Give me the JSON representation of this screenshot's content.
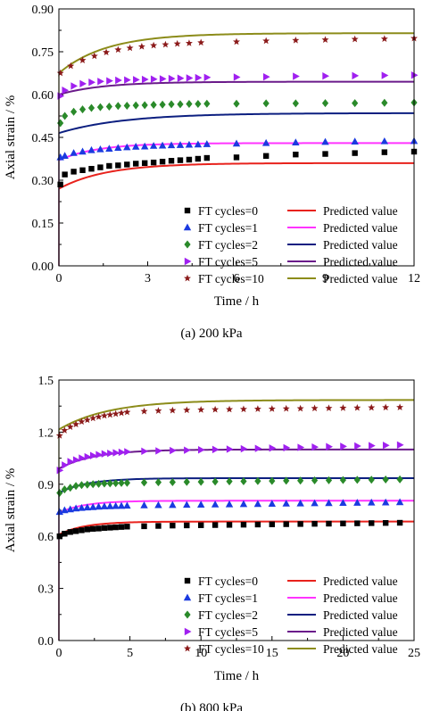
{
  "chart_data": [
    {
      "type": "scatter",
      "caption": "(a) 200 kPa",
      "xlabel": "Time / h",
      "ylabel": "Axial strain / %",
      "xlim": [
        0,
        12
      ],
      "ylim": [
        0,
        0.9
      ],
      "xticks": [
        "0",
        "3",
        "6",
        "9",
        "12"
      ],
      "yticks": [
        "0.00",
        "0.15",
        "0.30",
        "0.45",
        "0.60",
        "0.75",
        "0.90"
      ],
      "legend_position": "bottom-right",
      "predicted_label": "Predicted value",
      "series": [
        {
          "name": "FT cycles=0",
          "marker": "square",
          "color": "#000000",
          "line_color": "#e8221c",
          "x": [
            0.05,
            0.2,
            0.5,
            0.8,
            1.1,
            1.4,
            1.7,
            2.0,
            2.3,
            2.6,
            2.9,
            3.2,
            3.5,
            3.8,
            4.1,
            4.4,
            4.7,
            5.0,
            6.0,
            7.0,
            8.0,
            9.0,
            10.0,
            11.0,
            12.0
          ],
          "y": [
            0.285,
            0.32,
            0.33,
            0.335,
            0.34,
            0.345,
            0.35,
            0.352,
            0.355,
            0.358,
            0.36,
            0.362,
            0.365,
            0.368,
            0.37,
            0.372,
            0.375,
            0.378,
            0.38,
            0.385,
            0.39,
            0.392,
            0.395,
            0.398,
            0.4
          ],
          "pred": {
            "a": 0.36,
            "b": 0.09,
            "tau": 1.6
          }
        },
        {
          "name": "FT cycles=1",
          "marker": "triangle-up",
          "color": "#1a3ae0",
          "line_color": "#ff33ff",
          "x": [
            0.05,
            0.2,
            0.5,
            0.8,
            1.1,
            1.4,
            1.7,
            2.0,
            2.3,
            2.6,
            2.9,
            3.2,
            3.5,
            3.8,
            4.1,
            4.4,
            4.7,
            5.0,
            6.0,
            7.0,
            8.0,
            9.0,
            10.0,
            11.0,
            12.0
          ],
          "y": [
            0.38,
            0.385,
            0.395,
            0.4,
            0.405,
            0.408,
            0.41,
            0.413,
            0.415,
            0.417,
            0.418,
            0.42,
            0.421,
            0.422,
            0.423,
            0.424,
            0.425,
            0.426,
            0.428,
            0.43,
            0.432,
            0.434,
            0.435,
            0.436,
            0.437
          ],
          "pred": {
            "a": 0.43,
            "b": 0.06,
            "tau": 1.3
          }
        },
        {
          "name": "FT cycles=2",
          "marker": "diamond",
          "color": "#2a8a2a",
          "line_color": "#0c1f80",
          "x": [
            0.05,
            0.2,
            0.5,
            0.8,
            1.1,
            1.4,
            1.7,
            2.0,
            2.3,
            2.6,
            2.9,
            3.2,
            3.5,
            3.8,
            4.1,
            4.4,
            4.7,
            5.0,
            6.0,
            7.0,
            8.0,
            9.0,
            10.0,
            11.0,
            12.0
          ],
          "y": [
            0.5,
            0.525,
            0.54,
            0.548,
            0.553,
            0.556,
            0.558,
            0.56,
            0.561,
            0.562,
            0.563,
            0.564,
            0.565,
            0.566,
            0.566,
            0.567,
            0.567,
            0.568,
            0.568,
            0.569,
            0.569,
            0.57,
            0.57,
            0.571,
            0.572
          ],
          "pred": {
            "a": 0.535,
            "b": 0.07,
            "tau": 2.2
          }
        },
        {
          "name": "FT cycles=5",
          "marker": "triangle-right",
          "color": "#a020f0",
          "line_color": "#6a1a8a",
          "x": [
            0.05,
            0.2,
            0.5,
            0.8,
            1.1,
            1.4,
            1.7,
            2.0,
            2.3,
            2.6,
            2.9,
            3.2,
            3.5,
            3.8,
            4.1,
            4.4,
            4.7,
            5.0,
            6.0,
            7.0,
            8.0,
            9.0,
            10.0,
            11.0,
            12.0
          ],
          "y": [
            0.595,
            0.615,
            0.63,
            0.638,
            0.643,
            0.646,
            0.648,
            0.65,
            0.651,
            0.652,
            0.653,
            0.654,
            0.655,
            0.656,
            0.657,
            0.658,
            0.659,
            0.66,
            0.661,
            0.662,
            0.664,
            0.665,
            0.666,
            0.667,
            0.668
          ],
          "pred": {
            "a": 0.645,
            "b": 0.045,
            "tau": 1.5
          }
        },
        {
          "name": "FT cycles=10",
          "marker": "star",
          "color": "#8b1a1a",
          "line_color": "#8c8c1a",
          "x": [
            0.05,
            0.4,
            0.8,
            1.2,
            1.6,
            2.0,
            2.4,
            2.8,
            3.2,
            3.6,
            4.0,
            4.4,
            4.8,
            6.0,
            7.0,
            8.0,
            9.0,
            10.0,
            11.0,
            12.0
          ],
          "y": [
            0.675,
            0.7,
            0.72,
            0.735,
            0.748,
            0.757,
            0.763,
            0.768,
            0.772,
            0.775,
            0.778,
            0.78,
            0.782,
            0.785,
            0.788,
            0.79,
            0.792,
            0.794,
            0.795,
            0.797
          ],
          "pred": {
            "a": 0.815,
            "b": 0.14,
            "tau": 1.6
          }
        }
      ]
    },
    {
      "type": "scatter",
      "caption": "(b) 800 kPa",
      "xlabel": "Time / h",
      "ylabel": "Axial strain / %",
      "xlim": [
        0,
        25
      ],
      "ylim": [
        0,
        1.5
      ],
      "xticks": [
        "0",
        "5",
        "10",
        "15",
        "20",
        "25"
      ],
      "yticks": [
        "0.0",
        "0.3",
        "0.6",
        "0.9",
        "1.2",
        "1.5"
      ],
      "legend_position": "bottom-right",
      "predicted_label": "Predicted value",
      "series": [
        {
          "name": "FT cycles=0",
          "marker": "square",
          "color": "#000000",
          "line_color": "#e8221c",
          "x": [
            0.05,
            0.4,
            0.8,
            1.2,
            1.6,
            2.0,
            2.4,
            2.8,
            3.2,
            3.6,
            4.0,
            4.4,
            4.8,
            6,
            7,
            8,
            9,
            10,
            11,
            12,
            13,
            14,
            15,
            16,
            17,
            18,
            19,
            20,
            21,
            22,
            23,
            24
          ],
          "y": [
            0.6,
            0.615,
            0.625,
            0.63,
            0.635,
            0.64,
            0.643,
            0.645,
            0.648,
            0.65,
            0.652,
            0.654,
            0.656,
            0.658,
            0.66,
            0.662,
            0.663,
            0.664,
            0.665,
            0.666,
            0.667,
            0.668,
            0.669,
            0.67,
            0.671,
            0.672,
            0.673,
            0.674,
            0.675,
            0.676,
            0.677,
            0.678
          ],
          "pred": {
            "a": 0.685,
            "b": 0.075,
            "tau": 1.8
          }
        },
        {
          "name": "FT cycles=1",
          "marker": "triangle-up",
          "color": "#1a3ae0",
          "line_color": "#ff33ff",
          "x": [
            0.05,
            0.4,
            0.8,
            1.2,
            1.6,
            2.0,
            2.4,
            2.8,
            3.2,
            3.6,
            4.0,
            4.4,
            4.8,
            6,
            7,
            8,
            9,
            10,
            11,
            12,
            13,
            14,
            15,
            16,
            17,
            18,
            19,
            20,
            21,
            22,
            23,
            24
          ],
          "y": [
            0.74,
            0.75,
            0.755,
            0.76,
            0.763,
            0.766,
            0.768,
            0.77,
            0.772,
            0.773,
            0.774,
            0.775,
            0.776,
            0.778,
            0.779,
            0.78,
            0.781,
            0.782,
            0.783,
            0.784,
            0.785,
            0.786,
            0.787,
            0.788,
            0.789,
            0.79,
            0.791,
            0.792,
            0.793,
            0.794,
            0.795,
            0.796
          ],
          "pred": {
            "a": 0.805,
            "b": 0.07,
            "tau": 1.8
          }
        },
        {
          "name": "FT cycles=2",
          "marker": "diamond",
          "color": "#2a8a2a",
          "line_color": "#0c1f80",
          "x": [
            0.05,
            0.4,
            0.8,
            1.2,
            1.6,
            2.0,
            2.4,
            2.8,
            3.2,
            3.6,
            4.0,
            4.4,
            4.8,
            6,
            7,
            8,
            9,
            10,
            11,
            12,
            13,
            14,
            15,
            16,
            17,
            18,
            19,
            20,
            21,
            22,
            23,
            24
          ],
          "y": [
            0.85,
            0.87,
            0.88,
            0.89,
            0.895,
            0.898,
            0.9,
            0.902,
            0.904,
            0.905,
            0.906,
            0.907,
            0.908,
            0.91,
            0.911,
            0.912,
            0.913,
            0.914,
            0.915,
            0.916,
            0.917,
            0.918,
            0.919,
            0.92,
            0.921,
            0.922,
            0.923,
            0.924,
            0.925,
            0.926,
            0.927,
            0.928
          ],
          "pred": {
            "a": 0.935,
            "b": 0.085,
            "tau": 2.0
          }
        },
        {
          "name": "FT cycles=5",
          "marker": "triangle-right",
          "color": "#a020f0",
          "line_color": "#6a1a8a",
          "x": [
            0.05,
            0.4,
            0.8,
            1.2,
            1.6,
            2.0,
            2.4,
            2.8,
            3.2,
            3.6,
            4.0,
            4.4,
            4.8,
            6,
            7,
            8,
            9,
            10,
            11,
            12,
            13,
            14,
            15,
            16,
            17,
            18,
            19,
            20,
            21,
            22,
            23,
            24
          ],
          "y": [
            0.98,
            1.01,
            1.03,
            1.04,
            1.05,
            1.058,
            1.065,
            1.07,
            1.075,
            1.078,
            1.081,
            1.084,
            1.087,
            1.09,
            1.092,
            1.094,
            1.096,
            1.098,
            1.1,
            1.102,
            1.104,
            1.106,
            1.108,
            1.11,
            1.112,
            1.114,
            1.116,
            1.118,
            1.12,
            1.122,
            1.124,
            1.126
          ],
          "pred": {
            "a": 1.1,
            "b": 0.11,
            "tau": 2.5
          }
        },
        {
          "name": "FT cycles=10",
          "marker": "star",
          "color": "#8b1a1a",
          "line_color": "#8c8c1a",
          "x": [
            0.05,
            0.4,
            0.8,
            1.2,
            1.6,
            2.0,
            2.4,
            2.8,
            3.2,
            3.6,
            4.0,
            4.4,
            4.8,
            6,
            7,
            8,
            9,
            10,
            11,
            12,
            13,
            14,
            15,
            16,
            17,
            18,
            19,
            20,
            21,
            22,
            23,
            24
          ],
          "y": [
            1.18,
            1.21,
            1.23,
            1.245,
            1.26,
            1.27,
            1.28,
            1.288,
            1.295,
            1.3,
            1.305,
            1.31,
            1.315,
            1.32,
            1.323,
            1.325,
            1.327,
            1.329,
            1.33,
            1.331,
            1.332,
            1.333,
            1.334,
            1.335,
            1.336,
            1.337,
            1.338,
            1.339,
            1.34,
            1.341,
            1.342,
            1.343
          ],
          "pred": {
            "a": 1.385,
            "b": 0.17,
            "tau": 3.5
          }
        }
      ]
    }
  ]
}
